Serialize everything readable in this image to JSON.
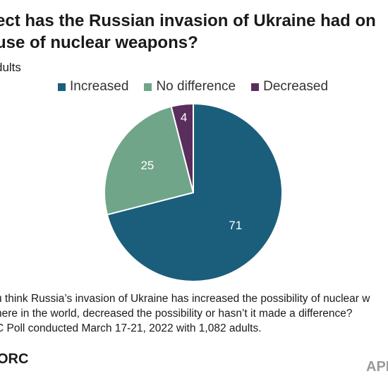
{
  "title_lines": [
    "ect has the Russian invasion of Ukraine had on",
    "use of nuclear weapons?"
  ],
  "subtitle": "dults",
  "chart_data": {
    "type": "pie",
    "categories": [
      "Increased",
      "No difference",
      "Decreased"
    ],
    "values": [
      71,
      25,
      4
    ],
    "colors": [
      "#1b5e7c",
      "#70a58a",
      "#5a2e5c"
    ],
    "label_color": "#ffffff",
    "legend_placement": "top",
    "start": "12 o'clock",
    "direction": "clockwise"
  },
  "note_lines": [
    "u think Russia’s invasion of Ukraine has increased the possibility of nuclear w",
    "here in the world, decreased the possibility or hasn’t it made a difference?",
    "C Poll conducted March 17-21, 2022 with 1,082 adults."
  ],
  "logos": {
    "left": "ORC",
    "right": "APN"
  }
}
